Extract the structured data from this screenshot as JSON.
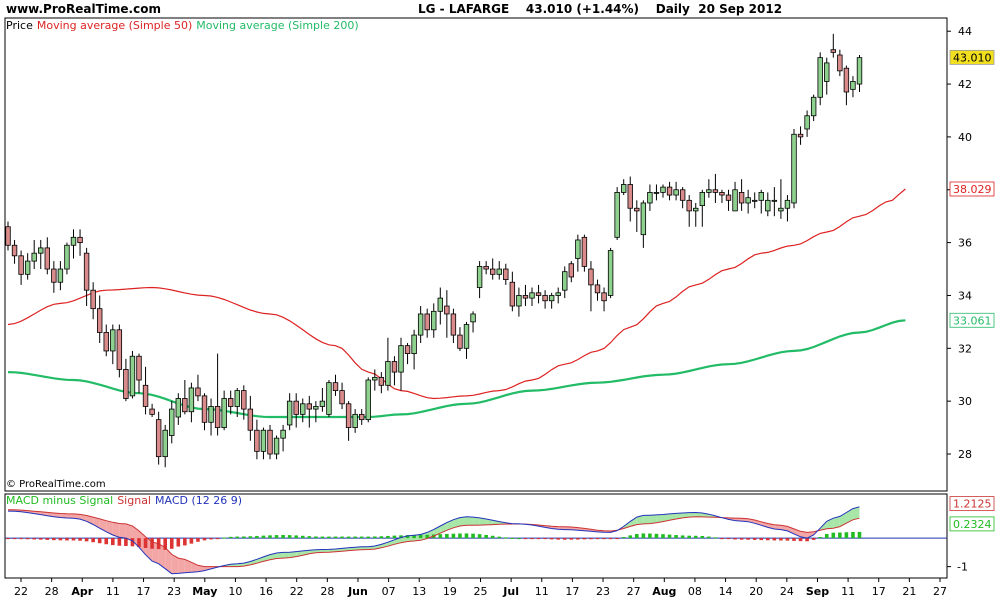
{
  "header": {
    "site": "www.ProRealTime.com",
    "symbol": "LG - LAFARGE",
    "last_change": "43.010 (+1.44%)",
    "period": "Daily",
    "date": "20 Sep 2012"
  },
  "watermark": "© ProRealTime.com",
  "colors": {
    "up_candle": "#8ED08E",
    "down_candle": "#D98A8A",
    "ma50": "#DD2222",
    "ma200": "#22BB66",
    "macd_line": "#2233BB",
    "signal_line": "#CC3333",
    "hist_pos": "#22BB22",
    "hist_neg": "#DD3333",
    "price_tag_bg": "#F2E020"
  },
  "chart_data": [
    {
      "type": "candlestick",
      "legend": {
        "price": "Price",
        "ma50": "Moving average (Simple 50)",
        "ma200": "Moving average (Simple 200)"
      },
      "y_ticks": [
        28,
        30,
        32,
        34,
        36,
        38,
        40,
        42,
        44
      ],
      "ylim": [
        26.6,
        44.5
      ],
      "x_labels": [
        "22",
        "28",
        "Apr",
        "11",
        "17",
        "23",
        "May",
        "10",
        "16",
        "22",
        "28",
        "Jun",
        "07",
        "13",
        "19",
        "25",
        "Jul",
        "11",
        "17",
        "23",
        "27",
        "Aug",
        "08",
        "14",
        "20",
        "24",
        "Sep",
        "11",
        "17",
        "21",
        "27"
      ],
      "tags": {
        "last": "43.010",
        "ma50": "38.029",
        "ma200": "33.061"
      },
      "ohlc_order": "open, high, low, close",
      "candles": [
        [
          36.6,
          36.8,
          35.7,
          35.9
        ],
        [
          35.9,
          36.1,
          35.2,
          35.5
        ],
        [
          35.5,
          35.7,
          34.4,
          34.8
        ],
        [
          34.8,
          35.6,
          34.6,
          35.3
        ],
        [
          35.3,
          36.1,
          35.0,
          35.6
        ],
        [
          35.6,
          36.1,
          35.0,
          35.8
        ],
        [
          35.8,
          36.2,
          34.8,
          35.0
        ],
        [
          35.0,
          35.3,
          34.1,
          34.5
        ],
        [
          34.5,
          35.3,
          34.2,
          35.0
        ],
        [
          35.0,
          36.0,
          34.8,
          35.9
        ],
        [
          35.9,
          36.5,
          35.4,
          36.2
        ],
        [
          36.2,
          36.5,
          35.5,
          36.0
        ],
        [
          35.6,
          35.8,
          33.6,
          34.2
        ],
        [
          34.2,
          34.5,
          33.1,
          33.5
        ],
        [
          33.5,
          34.0,
          32.2,
          32.6
        ],
        [
          32.6,
          32.9,
          31.7,
          31.9
        ],
        [
          31.9,
          32.9,
          31.4,
          32.7
        ],
        [
          32.7,
          32.9,
          30.9,
          31.2
        ],
        [
          31.2,
          31.6,
          30.0,
          30.1
        ],
        [
          30.2,
          31.9,
          30.1,
          31.7
        ],
        [
          31.7,
          31.8,
          30.3,
          30.8
        ],
        [
          30.6,
          31.3,
          29.5,
          29.8
        ],
        [
          29.7,
          29.9,
          29.4,
          29.5
        ],
        [
          29.3,
          29.6,
          27.6,
          27.9
        ],
        [
          27.9,
          29.1,
          27.5,
          28.9
        ],
        [
          28.7,
          30.0,
          28.4,
          29.7
        ],
        [
          29.4,
          30.3,
          29.1,
          30.1
        ],
        [
          30.1,
          30.8,
          29.5,
          29.6
        ],
        [
          29.6,
          30.7,
          29.2,
          30.5
        ],
        [
          30.5,
          31.0,
          30.0,
          30.2
        ],
        [
          30.2,
          30.3,
          28.9,
          29.2
        ],
        [
          29.2,
          30.1,
          28.7,
          29.8
        ],
        [
          29.8,
          31.8,
          28.7,
          29.0
        ],
        [
          29.0,
          30.4,
          28.9,
          30.1
        ],
        [
          30.1,
          30.4,
          29.5,
          29.8
        ],
        [
          29.8,
          30.5,
          29.4,
          30.4
        ],
        [
          30.4,
          30.6,
          29.3,
          29.7
        ],
        [
          29.7,
          30.2,
          28.5,
          28.9
        ],
        [
          28.9,
          29.3,
          27.8,
          28.1
        ],
        [
          28.1,
          29.0,
          27.8,
          28.9
        ],
        [
          28.9,
          29.1,
          27.8,
          28.0
        ],
        [
          28.0,
          28.7,
          27.8,
          28.6
        ],
        [
          28.6,
          29.1,
          28.1,
          28.9
        ],
        [
          29.1,
          30.3,
          28.9,
          30.0
        ],
        [
          30.0,
          30.3,
          29.0,
          29.5
        ],
        [
          29.5,
          30.1,
          29.2,
          29.9
        ],
        [
          29.9,
          30.2,
          29.0,
          29.7
        ],
        [
          29.7,
          30.0,
          29.2,
          29.8
        ],
        [
          29.8,
          30.5,
          29.6,
          30.0
        ],
        [
          29.5,
          30.8,
          29.4,
          30.7
        ],
        [
          30.7,
          31.0,
          30.2,
          30.4
        ],
        [
          30.4,
          30.7,
          29.7,
          29.9
        ],
        [
          29.9,
          30.0,
          28.5,
          29.0
        ],
        [
          29.0,
          29.7,
          28.8,
          29.5
        ],
        [
          29.5,
          29.7,
          29.1,
          29.3
        ],
        [
          29.3,
          30.9,
          29.2,
          30.8
        ],
        [
          30.8,
          31.2,
          30.4,
          30.9
        ],
        [
          30.9,
          31.1,
          30.3,
          30.6
        ],
        [
          30.6,
          32.4,
          30.4,
          31.5
        ],
        [
          31.5,
          31.7,
          30.6,
          31.1
        ],
        [
          31.1,
          32.4,
          30.4,
          32.1
        ],
        [
          32.1,
          32.2,
          31.4,
          31.8
        ],
        [
          31.8,
          32.7,
          31.2,
          32.5
        ],
        [
          32.5,
          33.6,
          32.2,
          33.3
        ],
        [
          33.3,
          33.5,
          32.4,
          32.7
        ],
        [
          32.7,
          33.7,
          32.4,
          33.4
        ],
        [
          33.4,
          34.3,
          32.9,
          33.9
        ],
        [
          33.6,
          34.2,
          32.4,
          33.3
        ],
        [
          33.3,
          33.5,
          32.2,
          32.5
        ],
        [
          32.5,
          32.8,
          31.9,
          32.0
        ],
        [
          32.0,
          33.0,
          31.6,
          32.9
        ],
        [
          33.0,
          33.4,
          32.6,
          33.3
        ],
        [
          34.3,
          35.3,
          33.9,
          35.1
        ],
        [
          35.1,
          35.3,
          34.8,
          35.0
        ],
        [
          35.0,
          35.4,
          34.6,
          34.8
        ],
        [
          34.8,
          35.3,
          34.6,
          35.0
        ],
        [
          35.0,
          35.2,
          34.4,
          34.6
        ],
        [
          34.5,
          34.9,
          33.4,
          33.6
        ],
        [
          33.6,
          34.3,
          33.2,
          34.0
        ],
        [
          34.0,
          34.4,
          33.6,
          33.9
        ],
        [
          33.9,
          34.3,
          33.6,
          34.1
        ],
        [
          34.1,
          34.4,
          33.7,
          34.0
        ],
        [
          34.0,
          34.2,
          33.5,
          33.8
        ],
        [
          33.8,
          34.1,
          33.5,
          34.0
        ],
        [
          34.0,
          34.3,
          33.7,
          34.1
        ],
        [
          34.2,
          35.1,
          33.9,
          34.9
        ],
        [
          35.2,
          35.3,
          34.5,
          34.7
        ],
        [
          35.4,
          36.3,
          34.9,
          36.1
        ],
        [
          36.2,
          36.3,
          34.9,
          35.1
        ],
        [
          35.0,
          35.3,
          33.4,
          34.4
        ],
        [
          34.4,
          34.6,
          33.8,
          34.1
        ],
        [
          34.1,
          34.3,
          33.4,
          33.8
        ],
        [
          34.0,
          35.8,
          33.9,
          35.7
        ],
        [
          36.2,
          38.1,
          36.1,
          37.9
        ],
        [
          37.9,
          38.4,
          37.8,
          38.2
        ],
        [
          38.2,
          38.5,
          36.8,
          37.3
        ],
        [
          37.3,
          37.6,
          36.4,
          37.2
        ],
        [
          36.3,
          37.6,
          35.8,
          37.5
        ],
        [
          37.5,
          38.2,
          37.2,
          37.9
        ],
        [
          37.9,
          38.2,
          37.6,
          37.9
        ],
        [
          37.9,
          38.2,
          37.7,
          38.1
        ],
        [
          38.1,
          38.3,
          37.6,
          37.8
        ],
        [
          37.8,
          38.3,
          37.6,
          38.0
        ],
        [
          38.0,
          38.1,
          37.3,
          37.6
        ],
        [
          37.6,
          37.8,
          36.6,
          37.2
        ],
        [
          37.2,
          37.5,
          36.6,
          37.3
        ],
        [
          37.4,
          38.0,
          36.6,
          37.9
        ],
        [
          37.9,
          38.4,
          37.7,
          38.0
        ],
        [
          38.0,
          38.6,
          37.5,
          37.9
        ],
        [
          37.9,
          38.0,
          37.5,
          37.8
        ],
        [
          37.8,
          38.0,
          37.2,
          37.6
        ],
        [
          37.2,
          38.3,
          37.2,
          38.0
        ],
        [
          37.9,
          38.4,
          37.2,
          37.5
        ],
        [
          37.5,
          38.0,
          37.1,
          37.7
        ],
        [
          37.6,
          37.9,
          37.3,
          37.6
        ],
        [
          37.6,
          38.0,
          37.1,
          37.9
        ],
        [
          37.2,
          37.9,
          37.0,
          37.6
        ],
        [
          37.6,
          38.1,
          37.0,
          37.6
        ],
        [
          37.2,
          38.4,
          36.9,
          37.3
        ],
        [
          37.3,
          37.8,
          36.8,
          37.6
        ],
        [
          37.5,
          40.3,
          37.3,
          40.1
        ],
        [
          40.1,
          40.4,
          39.7,
          40.0
        ],
        [
          40.3,
          41.0,
          40.0,
          40.8
        ],
        [
          40.8,
          41.6,
          40.6,
          41.5
        ],
        [
          41.5,
          43.2,
          41.2,
          43.0
        ],
        [
          42.1,
          43.0,
          41.6,
          42.8
        ],
        [
          43.3,
          43.9,
          43.0,
          43.2
        ],
        [
          43.1,
          43.3,
          42.3,
          42.5
        ],
        [
          42.6,
          42.7,
          41.2,
          41.7
        ],
        [
          41.8,
          42.3,
          41.5,
          42.1
        ],
        [
          42.0,
          43.1,
          41.7,
          43.0
        ]
      ],
      "ma50_anchors": [
        [
          0,
          32.9
        ],
        [
          8,
          33.7
        ],
        [
          15,
          34.2
        ],
        [
          22,
          34.3
        ],
        [
          30,
          34.0
        ],
        [
          40,
          33.3
        ],
        [
          50,
          32.1
        ],
        [
          55,
          31.1
        ],
        [
          60,
          30.4
        ],
        [
          65,
          30.1
        ],
        [
          70,
          30.2
        ],
        [
          75,
          30.4
        ],
        [
          80,
          30.8
        ],
        [
          85,
          31.4
        ],
        [
          90,
          31.9
        ],
        [
          95,
          32.8
        ],
        [
          100,
          33.7
        ],
        [
          105,
          34.4
        ],
        [
          110,
          35.0
        ],
        [
          115,
          35.6
        ],
        [
          120,
          35.9
        ],
        [
          125,
          36.4
        ],
        [
          130,
          37.0
        ],
        [
          135,
          37.6
        ],
        [
          137,
          38.03
        ]
      ],
      "ma200_anchors": [
        [
          0,
          31.1
        ],
        [
          10,
          30.8
        ],
        [
          20,
          30.3
        ],
        [
          30,
          29.7
        ],
        [
          40,
          29.4
        ],
        [
          50,
          29.4
        ],
        [
          55,
          29.4
        ],
        [
          60,
          29.5
        ],
        [
          70,
          29.9
        ],
        [
          80,
          30.4
        ],
        [
          90,
          30.7
        ],
        [
          100,
          31.0
        ],
        [
          110,
          31.4
        ],
        [
          120,
          31.9
        ],
        [
          130,
          32.6
        ],
        [
          137,
          33.06
        ]
      ]
    },
    {
      "type": "macd",
      "legend": {
        "histogram": "MACD minus Signal",
        "signal": "Signal",
        "macd": "MACD (12 26 9)"
      },
      "y_ticks": [
        -1
      ],
      "ylim": [
        -1.4,
        1.55
      ],
      "tags": {
        "macd": "1.2125",
        "histogram": "0.2324"
      },
      "macd_anchors": [
        [
          0,
          0.95
        ],
        [
          10,
          0.7
        ],
        [
          18,
          0.0
        ],
        [
          23,
          -0.9
        ],
        [
          25,
          -1.25
        ],
        [
          28,
          -1.2
        ],
        [
          35,
          -0.9
        ],
        [
          42,
          -0.5
        ],
        [
          48,
          -0.4
        ],
        [
          55,
          -0.3
        ],
        [
          62,
          0.1
        ],
        [
          70,
          0.75
        ],
        [
          78,
          0.5
        ],
        [
          85,
          0.3
        ],
        [
          92,
          0.2
        ],
        [
          97,
          0.8
        ],
        [
          105,
          0.9
        ],
        [
          112,
          0.6
        ],
        [
          118,
          0.3
        ],
        [
          122,
          0.0
        ],
        [
          126,
          0.7
        ],
        [
          130,
          1.1
        ],
        [
          133,
          1.3
        ],
        [
          137,
          1.21
        ]
      ],
      "signal_anchors": [
        [
          0,
          1.0
        ],
        [
          10,
          0.85
        ],
        [
          18,
          0.5
        ],
        [
          23,
          -0.2
        ],
        [
          26,
          -0.7
        ],
        [
          30,
          -1.0
        ],
        [
          35,
          -1.0
        ],
        [
          42,
          -0.7
        ],
        [
          48,
          -0.5
        ],
        [
          55,
          -0.4
        ],
        [
          62,
          -0.1
        ],
        [
          70,
          0.45
        ],
        [
          78,
          0.5
        ],
        [
          85,
          0.4
        ],
        [
          92,
          0.25
        ],
        [
          97,
          0.5
        ],
        [
          105,
          0.75
        ],
        [
          112,
          0.7
        ],
        [
          118,
          0.45
        ],
        [
          122,
          0.2
        ],
        [
          126,
          0.35
        ],
        [
          130,
          0.7
        ],
        [
          133,
          0.95
        ],
        [
          137,
          1.0
        ]
      ]
    }
  ]
}
